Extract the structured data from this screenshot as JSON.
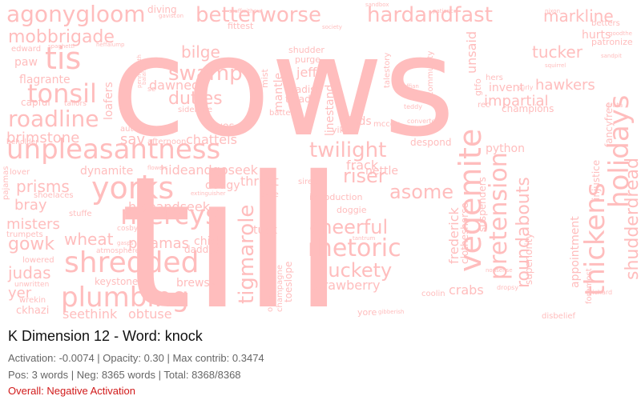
{
  "title": "K Dimension 12 - Word: knock",
  "stats_line1": "Activation: -0.0074 | Opacity: 0.30 | Max contrib: 0.3474",
  "stats_line2": "Pos: 3 words | Neg: 8365 words | Total: 8368/8368",
  "overall": "Overall: Negative Activation",
  "colors": {
    "word_color": "#ffbdbd",
    "overall_negative": "#d11a1a",
    "title": "#111111",
    "stats": "#666666",
    "background": "#ffffff"
  },
  "cloud_words": {
    "cows": "cows",
    "till": "till",
    "unpleasantness": "unpleasantness",
    "plumbing": "plumbing",
    "shredded": "shredded",
    "yorks": "yorks",
    "mercys": "mercys",
    "tis": "tis",
    "tonsil": "tonsil",
    "roadline": "roadline",
    "agonygloom": "agonygloom",
    "betterworse": "betterworse",
    "hardandfast": "hardandfast",
    "markline": "markline",
    "mobbrigade": "mobbrigade",
    "twilight": "twilight",
    "vegemite": "vegemite",
    "thickens": "thickens",
    "holidays": "holidays",
    "rhetoric": "rhetoric",
    "muckety": "muckety",
    "cheerful": "cheerful",
    "pretension": "pretension",
    "roundabouts": "roundabouts",
    "tigmarole": "tigmarole",
    "asome": "asome",
    "riser": "riser",
    "swamp": "swamp",
    "bilge": "bilge",
    "duties": "duties",
    "dawned": "dawned",
    "brimstone": "brimstone",
    "sav": "sav",
    "prisms": "prisms",
    "gowk": "gowk",
    "wheat": "wheat",
    "misters": "misters",
    "judas": "judas",
    "bray": "bray",
    "pyjamas": "pyjamas",
    "hideandseek": "hideandseek",
    "hideandgoseek": "hideandgoseek",
    "chattels": "chattels",
    "dynamite": "dynamite",
    "tucker": "tucker",
    "hawkers": "hawkers",
    "impartial": "impartial",
    "invent": "invent",
    "shudderdread": "shudderdread",
    "appointment": "appointment",
    "strawberry": "strawberry",
    "crabs": "crabs",
    "python": "python",
    "paw": "paw",
    "flagrante": "flagrante",
    "diving": "diving",
    "fittest": "fittest",
    "jeff": "jeff",
    "linestand": "linestand",
    "loafers": "loafers",
    "twos": "twos",
    "yikes": "yikes",
    "dads": "dads",
    "frack": "frack",
    "nettle": "nettle",
    "thrust": "thrust",
    "dodgy": "dodgy",
    "chick": "chick",
    "tuck": "tuck",
    "obtuse": "obtuse",
    "brewski": "brewski",
    "seethink": "seethink",
    "ckhazi": "ckhazi",
    "stuffe": "stuffe",
    "keystone": "keystone",
    "lowered": "lowered",
    "shoelaces": "shoelaces",
    "yer": "yer",
    "coolin": "coolin",
    "daddys": "daddys",
    "introduction": "introduction",
    "suspenders": "suspenders",
    "despond": "despond",
    "hurts": "hurts",
    "champions": "champions",
    "fancyfree": "fancyfree",
    "sidenote": "sidenote",
    "autumn": "autumn",
    "afternoon": "afternoon",
    "trumpets": "trumpets",
    "edward": "edward",
    "mist": "mist",
    "radish": "radish",
    "purge": "purge",
    "mantle": "mantle",
    "tread": "tread",
    "batter": "batter",
    "shudder": "shudder",
    "capful": "capful",
    "tailors": "tailors",
    "unsaid": "unsaid",
    "talestory": "talestory",
    "community": "community",
    "mccoy": "mccoy",
    "superiority": "superiority",
    "frederick": "frederick",
    "clotheshorse": "clotheshorse",
    "doggie": "doggie",
    "siree": "siree",
    "cosby": "cosby",
    "atmosphere": "atmosphere",
    "unwritten": "unwritten",
    "wrekin": "wrekin",
    "yore": "yore",
    "onion": "onion",
    "champagne": "champagne",
    "toeslope": "toeslope",
    "foremost": "foremost",
    "betters": "betters",
    "patronize": "patronize",
    "goodthe": "goodthe",
    "sandpit": "sandpit",
    "disbelief": "disbelief",
    "dropsy": "dropsy",
    "richard": "richard",
    "injustice": "injustice",
    "lover": "lover",
    "beholder": "beholder",
    "pajamas": "pajamas",
    "converted": "converted",
    "teddy": "teddy",
    "grata": "grata",
    "hers": "hers",
    "rec": "rec",
    "gtfo": "gtfo",
    "se": "se",
    "surly": "surly",
    "gasps": "gasps",
    "flowers": "flowers",
    "asbe": "asbe",
    "nixon": "nixon",
    "sandbox": "sandbox",
    "society": "society",
    "gaviscon": "gaviscon",
    "stuffwithout": "stuffwithout",
    "balance": "balance",
    "pennyworth": "pennyworth",
    "patience": "patience",
    "extinguisher": "extinguisher",
    "spaghetti": "spaghetti",
    "heffalump": "heffalump",
    "ruffian": "ruffian",
    "squirrel": "squirrel",
    "tantrum": "tantrum",
    "nonsense": "nonsense",
    "gibberish": "gibberish"
  }
}
